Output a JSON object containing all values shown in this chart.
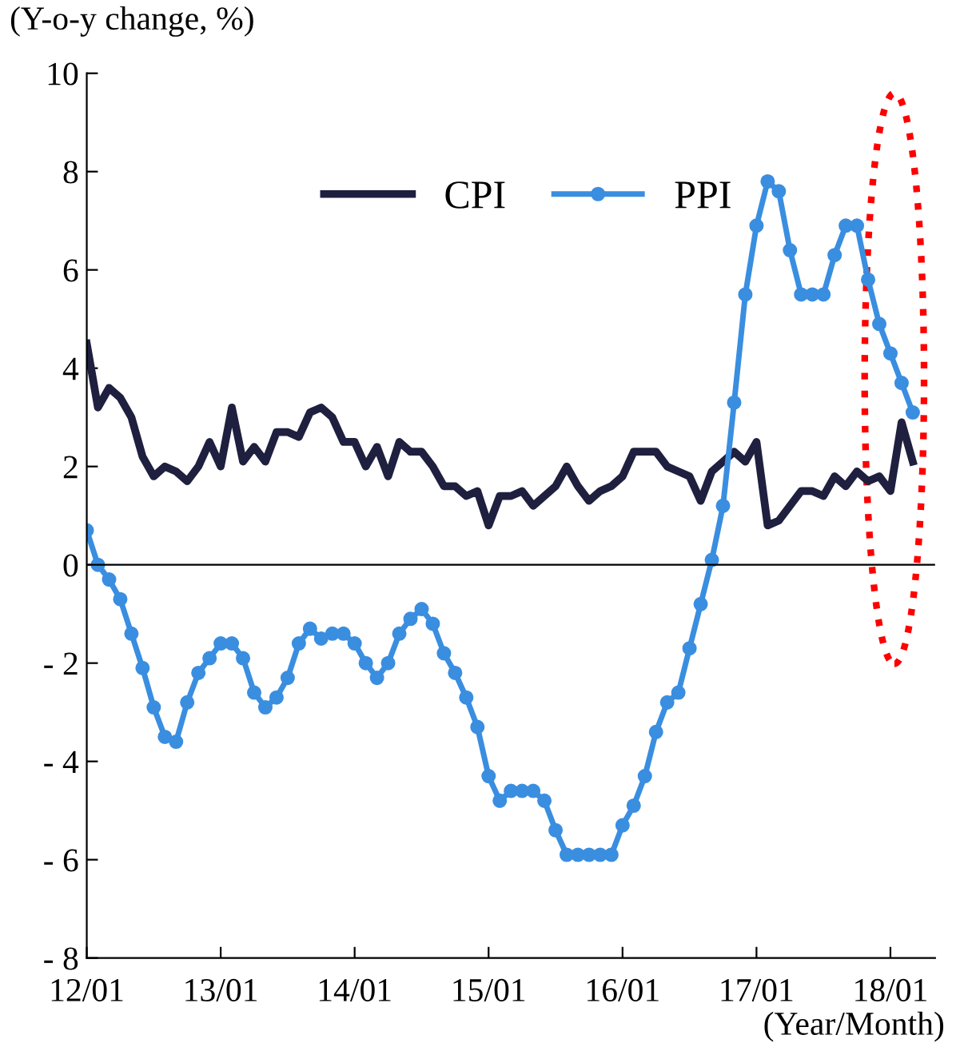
{
  "chart_data": {
    "type": "line",
    "ylabel": "(Y-o-y change, %)",
    "xlabel": "(Year/Month)",
    "legend": "top",
    "grid": false,
    "line_style": "solid",
    "categories": [
      "12/01",
      null,
      null,
      null,
      null,
      null,
      null,
      null,
      null,
      null,
      null,
      null,
      "13/01",
      null,
      null,
      null,
      null,
      null,
      null,
      null,
      null,
      null,
      null,
      null,
      "14/01",
      null,
      null,
      null,
      null,
      null,
      null,
      null,
      null,
      null,
      null,
      null,
      "15/01",
      null,
      null,
      null,
      null,
      null,
      null,
      null,
      null,
      null,
      null,
      null,
      "16/01",
      null,
      null,
      null,
      null,
      null,
      null,
      null,
      null,
      null,
      null,
      null,
      "17/01",
      null,
      null,
      null,
      null,
      null,
      null,
      null,
      null,
      null,
      null,
      null,
      "18/01",
      null,
      null
    ],
    "series": [
      {
        "name": "CPI",
        "color": "#1f1f3f",
        "marker": "none",
        "values": [
          4.5,
          3.2,
          3.6,
          3.4,
          3.0,
          2.2,
          1.8,
          2.0,
          1.9,
          1.7,
          2.0,
          2.5,
          2.0,
          3.2,
          2.1,
          2.4,
          2.1,
          2.7,
          2.7,
          2.6,
          3.1,
          3.2,
          3.0,
          2.5,
          2.5,
          2.0,
          2.4,
          1.8,
          2.5,
          2.3,
          2.3,
          2.0,
          1.6,
          1.6,
          1.4,
          1.5,
          0.8,
          1.4,
          1.4,
          1.5,
          1.2,
          1.4,
          1.6,
          2.0,
          1.6,
          1.3,
          1.5,
          1.6,
          1.8,
          2.3,
          2.3,
          2.3,
          2.0,
          1.9,
          1.8,
          1.3,
          1.9,
          2.1,
          2.3,
          2.1,
          2.5,
          0.8,
          0.9,
          1.2,
          1.5,
          1.5,
          1.4,
          1.8,
          1.6,
          1.9,
          1.7,
          1.8,
          1.5,
          2.9,
          2.1
        ]
      },
      {
        "name": "PPI",
        "color": "#3a8ee0",
        "marker": "circle",
        "values": [
          0.7,
          0.0,
          -0.3,
          -0.7,
          -1.4,
          -2.1,
          -2.9,
          -3.5,
          -3.6,
          -2.8,
          -2.2,
          -1.9,
          -1.6,
          -1.6,
          -1.9,
          -2.6,
          -2.9,
          -2.7,
          -2.3,
          -1.6,
          -1.3,
          -1.5,
          -1.4,
          -1.4,
          -1.6,
          -2.0,
          -2.3,
          -2.0,
          -1.4,
          -1.1,
          -0.9,
          -1.2,
          -1.8,
          -2.2,
          -2.7,
          -3.3,
          -4.3,
          -4.8,
          -4.6,
          -4.6,
          -4.6,
          -4.8,
          -5.4,
          -5.9,
          -5.9,
          -5.9,
          -5.9,
          -5.9,
          -5.3,
          -4.9,
          -4.3,
          -3.4,
          -2.8,
          -2.6,
          -1.7,
          -0.8,
          0.1,
          1.2,
          3.3,
          5.5,
          6.9,
          7.8,
          7.6,
          6.4,
          5.5,
          5.5,
          5.5,
          6.3,
          6.9,
          6.9,
          5.8,
          4.9,
          4.3,
          3.7,
          3.1
        ]
      }
    ],
    "ylim": [
      -8,
      10
    ],
    "ref_lines": [
      {
        "axis": "y",
        "value": 0,
        "color": "#000000"
      }
    ],
    "yticks": [
      {
        "value": -8,
        "label": "- 8"
      },
      {
        "value": -6,
        "label": "- 6"
      },
      {
        "value": -4,
        "label": "- 4"
      },
      {
        "value": -2,
        "label": "- 2"
      },
      0,
      2,
      4,
      6,
      8,
      10
    ]
  }
}
